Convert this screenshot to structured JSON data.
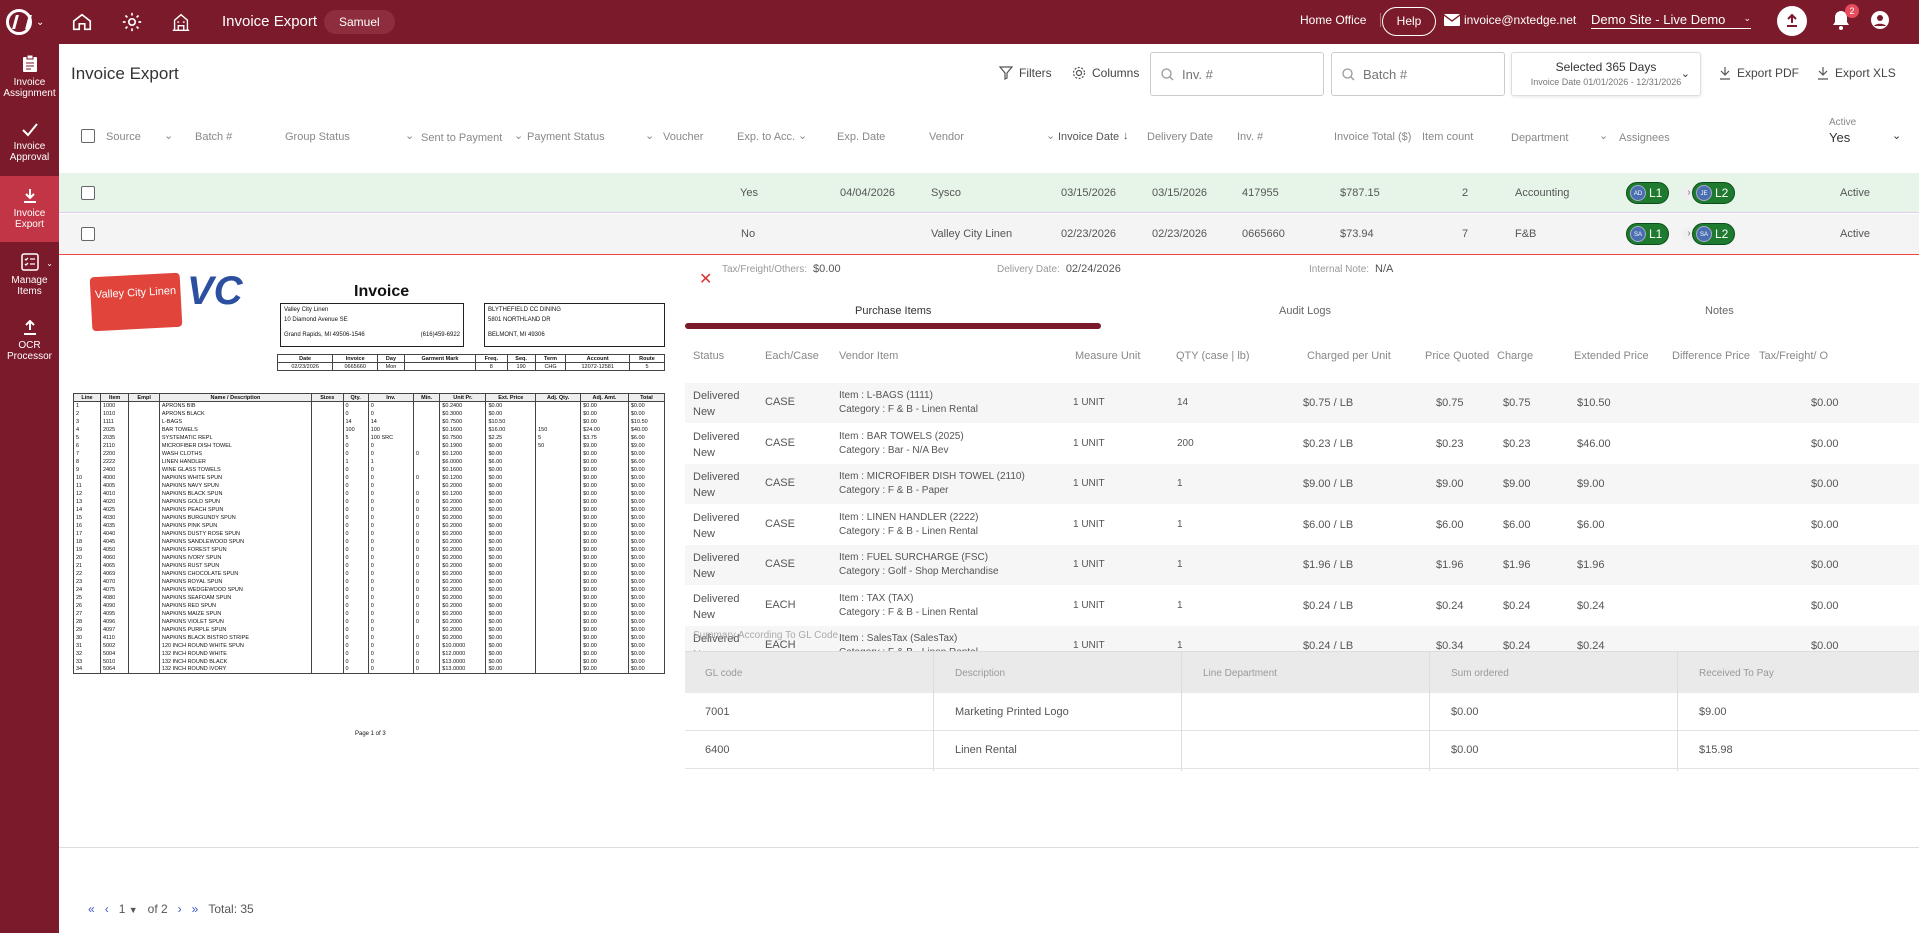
{
  "topbar": {
    "title": "Invoice Export",
    "user": "Samuel",
    "home_office": "Home Office",
    "help": "Help",
    "email": "invoice@nxtedge.net",
    "site": "Demo Site - Live Demo",
    "notification_count": "2",
    "icons": [
      "home-icon",
      "gear-icon",
      "building-icon",
      "upload-icon",
      "bell-icon",
      "user-icon",
      "envelope-icon"
    ]
  },
  "sidebar": {
    "items": [
      {
        "label": "Invoice Assignment",
        "icon": "clipboard-icon"
      },
      {
        "label": "Invoice Approval",
        "icon": "check-icon"
      },
      {
        "label": "Invoice Export",
        "icon": "download-icon"
      },
      {
        "label": "Manage Items",
        "icon": "list-icon"
      },
      {
        "label": "OCR Processor",
        "icon": "upload-icon"
      }
    ]
  },
  "header": {
    "title": "Invoice Export",
    "filters": "Filters",
    "columns": "Columns",
    "inv_placeholder": "Inv. #",
    "batch_placeholder": "Batch #",
    "date_range": "Selected 365 Days",
    "date_sub": "Invoice Date 01/01/2026 - 12/31/2026",
    "export_pdf": "Export PDF",
    "export_xls": "Export XLS"
  },
  "table": {
    "columns": {
      "source": "Source",
      "batch": "Batch #",
      "group_status": "Group Status",
      "sent": "Sent to Payment",
      "payment_status": "Payment Status",
      "voucher": "Voucher",
      "exp_acc": "Exp. to Acc.",
      "exp_date": "Exp. Date",
      "vendor": "Vendor",
      "invoice_date": "Invoice Date",
      "delivery_date": "Delivery Date",
      "inv": "Inv. #",
      "total": "Invoice Total ($)",
      "item_count": "Item count",
      "department": "Department",
      "assignees": "Assignees",
      "active_label": "Active",
      "active_value": "Yes"
    },
    "rows": [
      {
        "exp_acc": "Yes",
        "exp_date": "04/04/2026",
        "vendor": "Sysco",
        "invoice_date": "03/15/2026",
        "delivery_date": "03/15/2026",
        "inv": "417955",
        "total": "$787.15",
        "count": "2",
        "department": "Accounting",
        "a1_initials": "AD",
        "a1": "L1",
        "a2_initials": "JE",
        "a2": "L2",
        "status": "Active"
      },
      {
        "exp_acc": "No",
        "exp_date": "",
        "vendor": "Valley City Linen",
        "invoice_date": "02/23/2026",
        "delivery_date": "02/23/2026",
        "inv": "0665660",
        "total": "$73.94",
        "count": "7",
        "department": "F&B",
        "a1_initials": "SA",
        "a1": "L1",
        "a2_initials": "SA",
        "a2": "L2",
        "status": "Active"
      }
    ]
  },
  "detail": {
    "tax_label": "Tax/Freight/Others:",
    "tax_value": "$0.00",
    "delivery_label": "Delivery Date:",
    "delivery_value": "02/24/2026",
    "note_label": "Internal Note:",
    "note_value": "N/A",
    "tabs": [
      "Purchase Items",
      "Audit Logs",
      "Notes"
    ],
    "pi_headers": [
      "Status",
      "Each/Case",
      "Vendor Item",
      "Measure Unit",
      "QTY (case | lb)",
      "Charged per Unit",
      "Price Quoted",
      "Charge",
      "Extended Price",
      "Difference Price",
      "Tax/Freight/ O"
    ],
    "items": [
      {
        "status": "Delivered New",
        "unit": "CASE",
        "item": "Item : L-BAGS (1111)",
        "category": "Category : F & B - Linen Rental",
        "measure": "1 UNIT",
        "qty": "14",
        "cpu": "$0.75 / LB",
        "quoted": "$0.75",
        "charge": "$0.75",
        "extended": "$10.50",
        "tax": "$0.00"
      },
      {
        "status": "Delivered New",
        "unit": "CASE",
        "item": "Item : BAR TOWELS (2025)",
        "category": "Category : Bar - N/A Bev",
        "measure": "1 UNIT",
        "qty": "200",
        "cpu": "$0.23 / LB",
        "quoted": "$0.23",
        "charge": "$0.23",
        "extended": "$46.00",
        "tax": "$0.00"
      },
      {
        "status": "Delivered New",
        "unit": "CASE",
        "item": "Item : MICROFIBER DISH TOWEL (2110)",
        "category": "Category : F & B - Paper",
        "measure": "1 UNIT",
        "qty": "1",
        "cpu": "$9.00 / LB",
        "quoted": "$9.00",
        "charge": "$9.00",
        "extended": "$9.00",
        "tax": "$0.00"
      },
      {
        "status": "Delivered New",
        "unit": "CASE",
        "item": "Item : LINEN HANDLER (2222)",
        "category": "Category : F & B - Linen Rental",
        "measure": "1 UNIT",
        "qty": "1",
        "cpu": "$6.00 / LB",
        "quoted": "$6.00",
        "charge": "$6.00",
        "extended": "$6.00",
        "tax": "$0.00"
      },
      {
        "status": "Delivered New",
        "unit": "CASE",
        "item": "Item : FUEL SURCHARGE (FSC)",
        "category": "Category : Golf - Shop Merchandise",
        "measure": "1 UNIT",
        "qty": "1",
        "cpu": "$1.96 / LB",
        "quoted": "$1.96",
        "charge": "$1.96",
        "extended": "$1.96",
        "tax": "$0.00"
      },
      {
        "status": "Delivered New",
        "unit": "EACH",
        "item": "Item : TAX (TAX)",
        "category": "Category : F & B - Linen Rental",
        "measure": "1 UNIT",
        "qty": "1",
        "cpu": "$0.24 / LB",
        "quoted": "$0.24",
        "charge": "$0.24",
        "extended": "$0.24",
        "tax": "$0.00"
      },
      {
        "status": "Delivered New",
        "unit": "EACH",
        "item": "Item : SalesTax (SalesTax)",
        "category": "Category : F & B - Linen Rental",
        "measure": "1 UNIT",
        "qty": "1",
        "cpu": "$0.24 / LB",
        "quoted": "$0.34",
        "charge": "$0.24",
        "extended": "$0.24",
        "tax": "$0.00"
      }
    ],
    "gl_title": "Summary According To GL Code",
    "gl_headers": [
      "GL code",
      "Description",
      "Line Department",
      "Sum ordered",
      "Received To Pay"
    ],
    "gl_rows": [
      {
        "code": "7001",
        "desc": "Marketing Printed Logo",
        "dept": "",
        "sum": "$0.00",
        "recv": "$9.00"
      },
      {
        "code": "6400",
        "desc": "Linen Rental",
        "dept": "",
        "sum": "$0.00",
        "recv": "$15.98"
      }
    ]
  },
  "invoice_image": {
    "logo_text": "Valley City Linen",
    "logo_mark": "VC",
    "title": "Invoice",
    "from": [
      "Valley City Linen",
      "10 Diamond Avenue SE",
      "Grand Rapids, MI 49506-1546",
      "(616)459-6922"
    ],
    "to": [
      "BLYTHEFIELD CC DINING",
      "5801 NORTHLAND DR",
      "BELMONT, MI 49306"
    ],
    "info_headers": [
      "Date",
      "Invoice",
      "Day",
      "Garment Mark",
      "Freq.",
      "Seq.",
      "Term",
      "Account",
      "Route"
    ],
    "info_values": [
      "02/23/2026",
      "0665660",
      "Mon",
      "",
      "8",
      "190",
      "CHG",
      "12072-12581",
      "5"
    ],
    "line_headers": [
      "Line",
      "Item",
      "Empl",
      "Name / Description",
      "Sizes",
      "Qty.",
      "Inv.",
      "Min.",
      "Unit Pr.",
      "Ext. Price",
      "Adj. Qty.",
      "Adj. Amt.",
      "Total"
    ],
    "lines": [
      [
        "1",
        "1000",
        "",
        "APRONS BIB",
        "",
        "0",
        "0",
        "",
        "$0.2400",
        "$0.00",
        "",
        "$0.00",
        "$0.00"
      ],
      [
        "2",
        "1010",
        "",
        "APRONS BLACK",
        "",
        "0",
        "0",
        "",
        "$0.3000",
        "$0.00",
        "",
        "$0.00",
        "$0.00"
      ],
      [
        "3",
        "1111",
        "",
        "L-BAGS",
        "",
        "14",
        "14",
        "",
        "$0.7500",
        "$10.50",
        "",
        "$0.00",
        "$10.50"
      ],
      [
        "4",
        "2025",
        "",
        "BAR TOWELS",
        "",
        "100",
        "100",
        "",
        "$0.1600",
        "$16.00",
        "150",
        "$24.00",
        "$40.00"
      ],
      [
        "5",
        "2035",
        "",
        "SYSTEMATIC REPL",
        "",
        "5",
        "100 SRC",
        "",
        "$0.7500",
        "$2.25",
        "5",
        "$3.75",
        "$6.00"
      ],
      [
        "6",
        "2110",
        "",
        "MICROFIBER DISH TOWEL",
        "",
        "0",
        "0",
        "",
        "$0.1900",
        "$0.00",
        "50",
        "$9.00",
        "$9.00"
      ],
      [
        "7",
        "2200",
        "",
        "WASH CLOTHS",
        "",
        "0",
        "0",
        "0",
        "$0.1200",
        "$0.00",
        "",
        "$0.00",
        "$0.00"
      ],
      [
        "8",
        "2222",
        "",
        "LINEN HANDLER",
        "",
        "1",
        "1",
        "",
        "$6.0000",
        "$6.00",
        "",
        "$0.00",
        "$6.00"
      ],
      [
        "9",
        "2400",
        "",
        "WINE GLASS TOWELS",
        "",
        "0",
        "0",
        "",
        "$0.1600",
        "$0.00",
        "",
        "$0.00",
        "$0.00"
      ],
      [
        "10",
        "4000",
        "",
        "NAPKINS WHITE SPUN",
        "",
        "0",
        "0",
        "0",
        "$0.1200",
        "$0.00",
        "",
        "$0.00",
        "$0.00"
      ],
      [
        "11",
        "4005",
        "",
        "NAPKINS NAVY SPUN",
        "",
        "0",
        "0",
        "",
        "$0.2000",
        "$0.00",
        "",
        "$0.00",
        "$0.00"
      ],
      [
        "12",
        "4010",
        "",
        "NAPKINS BLACK SPUN",
        "",
        "0",
        "0",
        "0",
        "$0.1200",
        "$0.00",
        "",
        "$0.00",
        "$0.00"
      ],
      [
        "13",
        "4020",
        "",
        "NAPKINS GOLD SPUN",
        "",
        "0",
        "0",
        "0",
        "$0.2000",
        "$0.00",
        "",
        "$0.00",
        "$0.00"
      ],
      [
        "14",
        "4025",
        "",
        "NAPKINS PEACH SPUN",
        "",
        "0",
        "0",
        "0",
        "$0.2000",
        "$0.00",
        "",
        "$0.00",
        "$0.00"
      ],
      [
        "15",
        "4030",
        "",
        "NAPKINS BURGUNDY SPUN",
        "",
        "0",
        "0",
        "0",
        "$0.2000",
        "$0.00",
        "",
        "$0.00",
        "$0.00"
      ],
      [
        "16",
        "4035",
        "",
        "NAPKINS PINK SPUN",
        "",
        "0",
        "0",
        "0",
        "$0.2000",
        "$0.00",
        "",
        "$0.00",
        "$0.00"
      ],
      [
        "17",
        "4040",
        "",
        "NAPKINS DUSTY ROSE SPUN",
        "",
        "0",
        "0",
        "0",
        "$0.2000",
        "$0.00",
        "",
        "$0.00",
        "$0.00"
      ],
      [
        "18",
        "4045",
        "",
        "NAPKINS SANDLEWOOD SPUN",
        "",
        "0",
        "0",
        "0",
        "$0.2000",
        "$0.00",
        "",
        "$0.00",
        "$0.00"
      ],
      [
        "19",
        "4050",
        "",
        "NAPKINS FOREST SPUN",
        "",
        "0",
        "0",
        "0",
        "$0.2000",
        "$0.00",
        "",
        "$0.00",
        "$0.00"
      ],
      [
        "20",
        "4060",
        "",
        "NAPKINS IVORY SPUN",
        "",
        "0",
        "0",
        "0",
        "$0.2000",
        "$0.00",
        "",
        "$0.00",
        "$0.00"
      ],
      [
        "21",
        "4065",
        "",
        "NAPKINS RUST SPUN",
        "",
        "0",
        "0",
        "0",
        "$0.2000",
        "$0.00",
        "",
        "$0.00",
        "$0.00"
      ],
      [
        "22",
        "4069",
        "",
        "NAPKINS CHOCOLATE SPUN",
        "",
        "0",
        "0",
        "0",
        "$0.2000",
        "$0.00",
        "",
        "$0.00",
        "$0.00"
      ],
      [
        "23",
        "4070",
        "",
        "NAPKINS ROYAL SPUN",
        "",
        "0",
        "0",
        "0",
        "$0.2000",
        "$0.00",
        "",
        "$0.00",
        "$0.00"
      ],
      [
        "24",
        "4075",
        "",
        "NAPKINS WEDGEWOOD SPUN",
        "",
        "0",
        "0",
        "0",
        "$0.2000",
        "$0.00",
        "",
        "$0.00",
        "$0.00"
      ],
      [
        "25",
        "4080",
        "",
        "NAPKINS SEAFOAM SPUN",
        "",
        "0",
        "0",
        "0",
        "$0.2000",
        "$0.00",
        "",
        "$0.00",
        "$0.00"
      ],
      [
        "26",
        "4090",
        "",
        "NAPKINS RED SPUN",
        "",
        "0",
        "0",
        "0",
        "$0.2000",
        "$0.00",
        "",
        "$0.00",
        "$0.00"
      ],
      [
        "27",
        "4095",
        "",
        "NAPKINS MAIZE SPUN",
        "",
        "0",
        "0",
        "0",
        "$0.2000",
        "$0.00",
        "",
        "$0.00",
        "$0.00"
      ],
      [
        "28",
        "4096",
        "",
        "NAPKINS VIOLET SPUN",
        "",
        "0",
        "0",
        "0",
        "$0.2000",
        "$0.00",
        "",
        "$0.00",
        "$0.00"
      ],
      [
        "29",
        "4097",
        "",
        "NAPKINS PURPLE SPUN",
        "",
        "0",
        "0",
        "",
        "$0.2000",
        "$0.00",
        "",
        "$0.00",
        "$0.00"
      ],
      [
        "30",
        "4110",
        "",
        "NAPKINS BLACK BISTRO STRIPE",
        "",
        "0",
        "0",
        "0",
        "$0.2000",
        "$0.00",
        "",
        "$0.00",
        "$0.00"
      ],
      [
        "31",
        "5002",
        "",
        "120 INCH ROUND WHITE SPUN",
        "",
        "0",
        "0",
        "0",
        "$10.0000",
        "$0.00",
        "",
        "$0.00",
        "$0.00"
      ],
      [
        "32",
        "5004",
        "",
        "132 INCH ROUND WHITE",
        "",
        "0",
        "0",
        "0",
        "$12.0000",
        "$0.00",
        "",
        "$0.00",
        "$0.00"
      ],
      [
        "33",
        "5010",
        "",
        "132 INCH ROUND BLACK",
        "",
        "0",
        "0",
        "0",
        "$13.0000",
        "$0.00",
        "",
        "$0.00",
        "$0.00"
      ],
      [
        "34",
        "5064",
        "",
        "132 INCH ROUND IVORY",
        "",
        "0",
        "0",
        "0",
        "$13.0000",
        "$0.00",
        "",
        "$0.00",
        "$0.00"
      ]
    ],
    "page": "Page 1 of 3"
  },
  "pager": {
    "page": "1",
    "of": "of 2",
    "total": "Total: 35"
  },
  "colors": {
    "brand": "#7a1a2a",
    "active_side": "#c13546",
    "row_highlight": "#e6f5e8",
    "pill": "#1d7a2e"
  }
}
